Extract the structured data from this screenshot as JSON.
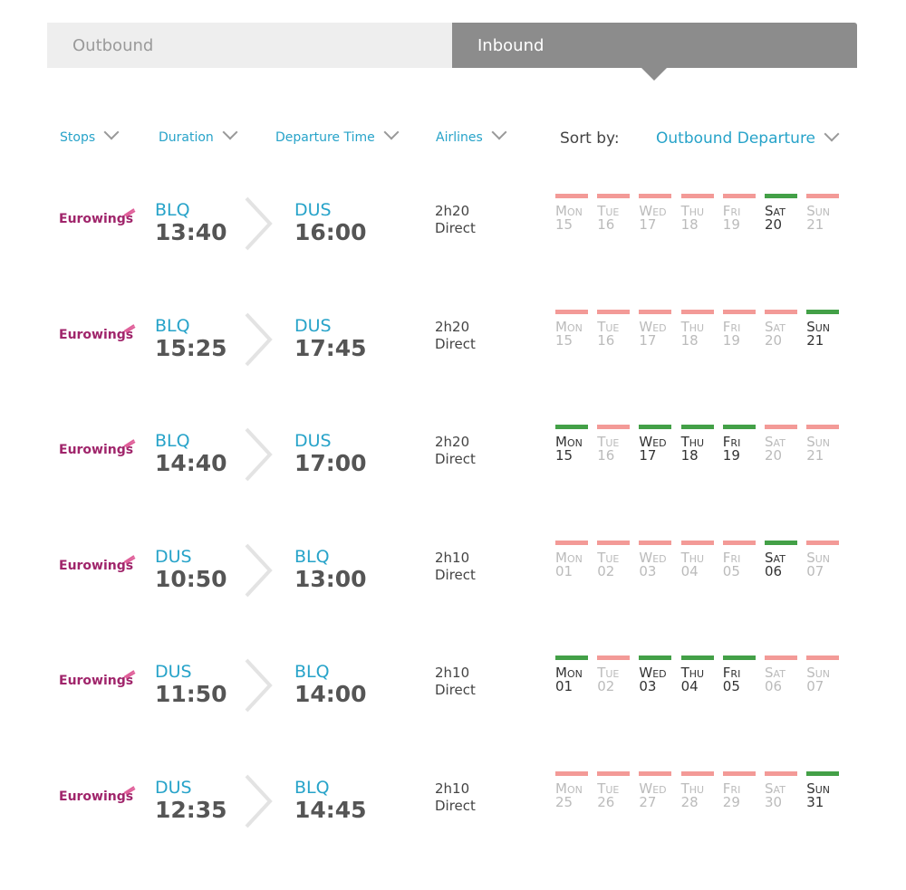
{
  "tabs": [
    "Outbound",
    "Inbound"
  ],
  "active_tab": 1,
  "filters": [
    "Stops",
    "Duration",
    "Departure Time",
    "Airlines"
  ],
  "sort": {
    "label": "Sort by:",
    "value": "Outbound Departure"
  },
  "weekdays": [
    "Mon",
    "Tue",
    "Wed",
    "Thu",
    "Fri",
    "Sat",
    "Sun"
  ],
  "flights": [
    {
      "airline": "Eurowings",
      "from": {
        "code": "BLQ",
        "time": "13:40"
      },
      "to": {
        "code": "DUS",
        "time": "16:00"
      },
      "duration": "2h20",
      "stops": "Direct",
      "days": [
        {
          "date": "15",
          "available": false
        },
        {
          "date": "16",
          "available": false
        },
        {
          "date": "17",
          "available": false
        },
        {
          "date": "18",
          "available": false
        },
        {
          "date": "19",
          "available": false
        },
        {
          "date": "20",
          "available": true
        },
        {
          "date": "21",
          "available": false
        }
      ]
    },
    {
      "airline": "Eurowings",
      "from": {
        "code": "BLQ",
        "time": "15:25"
      },
      "to": {
        "code": "DUS",
        "time": "17:45"
      },
      "duration": "2h20",
      "stops": "Direct",
      "days": [
        {
          "date": "15",
          "available": false
        },
        {
          "date": "16",
          "available": false
        },
        {
          "date": "17",
          "available": false
        },
        {
          "date": "18",
          "available": false
        },
        {
          "date": "19",
          "available": false
        },
        {
          "date": "20",
          "available": false
        },
        {
          "date": "21",
          "available": true
        }
      ]
    },
    {
      "airline": "Eurowings",
      "from": {
        "code": "BLQ",
        "time": "14:40"
      },
      "to": {
        "code": "DUS",
        "time": "17:00"
      },
      "duration": "2h20",
      "stops": "Direct",
      "days": [
        {
          "date": "15",
          "available": true
        },
        {
          "date": "16",
          "available": false
        },
        {
          "date": "17",
          "available": true
        },
        {
          "date": "18",
          "available": true
        },
        {
          "date": "19",
          "available": true
        },
        {
          "date": "20",
          "available": false
        },
        {
          "date": "21",
          "available": false
        }
      ]
    },
    {
      "airline": "Eurowings",
      "from": {
        "code": "DUS",
        "time": "10:50"
      },
      "to": {
        "code": "BLQ",
        "time": "13:00"
      },
      "duration": "2h10",
      "stops": "Direct",
      "days": [
        {
          "date": "01",
          "available": false
        },
        {
          "date": "02",
          "available": false
        },
        {
          "date": "03",
          "available": false
        },
        {
          "date": "04",
          "available": false
        },
        {
          "date": "05",
          "available": false
        },
        {
          "date": "06",
          "available": true
        },
        {
          "date": "07",
          "available": false
        }
      ]
    },
    {
      "airline": "Eurowings",
      "from": {
        "code": "DUS",
        "time": "11:50"
      },
      "to": {
        "code": "BLQ",
        "time": "14:00"
      },
      "duration": "2h10",
      "stops": "Direct",
      "days": [
        {
          "date": "01",
          "available": true
        },
        {
          "date": "02",
          "available": false
        },
        {
          "date": "03",
          "available": true
        },
        {
          "date": "04",
          "available": true
        },
        {
          "date": "05",
          "available": true
        },
        {
          "date": "06",
          "available": false
        },
        {
          "date": "07",
          "available": false
        }
      ]
    },
    {
      "airline": "Eurowings",
      "from": {
        "code": "DUS",
        "time": "12:35"
      },
      "to": {
        "code": "BLQ",
        "time": "14:45"
      },
      "duration": "2h10",
      "stops": "Direct",
      "days": [
        {
          "date": "25",
          "available": false
        },
        {
          "date": "26",
          "available": false
        },
        {
          "date": "27",
          "available": false
        },
        {
          "date": "28",
          "available": false
        },
        {
          "date": "29",
          "available": false
        },
        {
          "date": "30",
          "available": false
        },
        {
          "date": "31",
          "available": true
        }
      ]
    }
  ]
}
